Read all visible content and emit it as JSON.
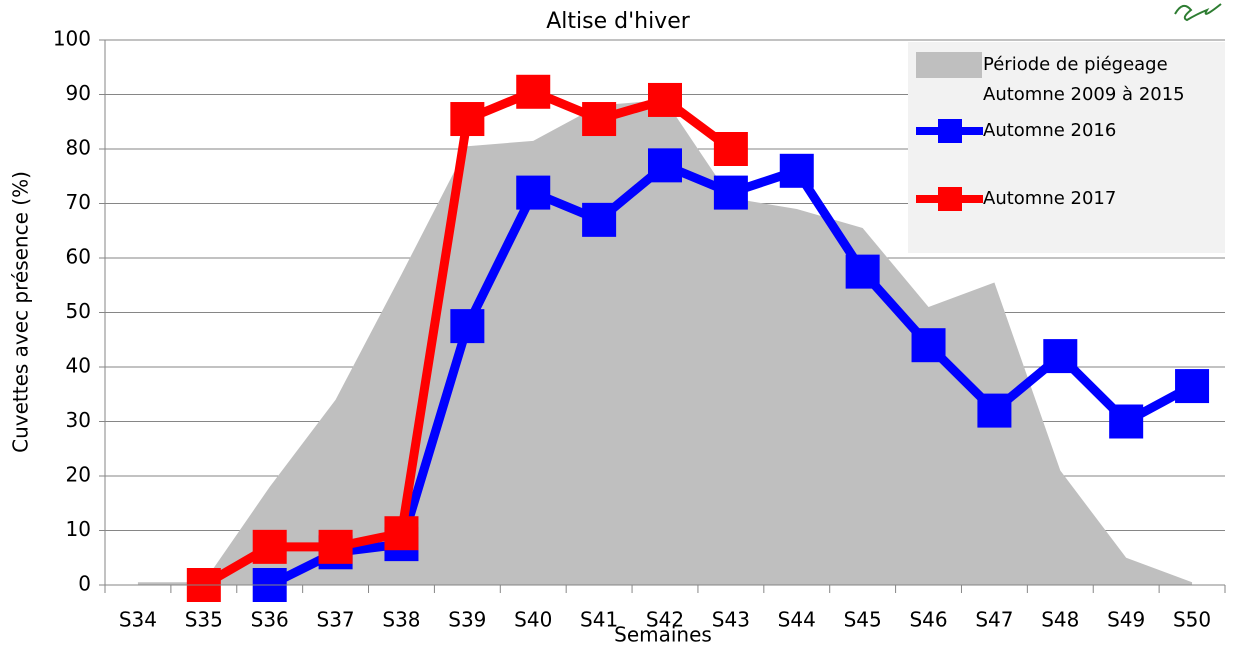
{
  "chart_data": {
    "type": "line",
    "title": "Altise d'hiver",
    "x_label": "Semaines",
    "y_label": "Cuvettes avec présence (%)",
    "categories": [
      "S34",
      "S35",
      "S36",
      "S37",
      "S38",
      "S39",
      "S40",
      "S41",
      "S42",
      "S43",
      "S44",
      "S45",
      "S46",
      "S47",
      "S48",
      "S49",
      "S50"
    ],
    "ylim": [
      0,
      100
    ],
    "yticks": [
      0,
      10,
      20,
      30,
      40,
      50,
      60,
      70,
      80,
      90,
      100
    ],
    "grid": true,
    "legend": "top-right",
    "series": [
      {
        "name": "Période de piégeage Automne 2009 à 2015",
        "type": "area",
        "color": "#bfbfbf",
        "values": [
          0.5,
          0.5,
          18,
          34,
          57,
          80.5,
          81.5,
          88,
          89,
          71,
          69,
          65.5,
          51,
          55.5,
          21,
          5,
          0.5
        ]
      },
      {
        "name": "Automne 2016",
        "color": "#0000ff",
        "values": [
          null,
          null,
          0,
          6,
          7.5,
          47.5,
          72,
          67,
          77,
          72,
          76,
          57.5,
          44,
          32,
          42,
          30,
          36.5
        ]
      },
      {
        "name": "Automne 2017",
        "color": "#ff0000",
        "values": [
          null,
          0,
          7,
          7,
          9.5,
          85.5,
          90.5,
          85.5,
          89,
          80,
          null,
          null,
          null,
          null,
          null,
          null,
          null
        ]
      }
    ]
  }
}
